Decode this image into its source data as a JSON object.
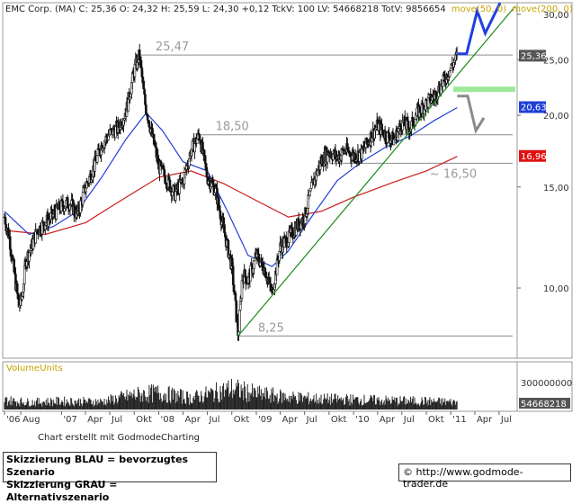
{
  "info_bar": {
    "text": "EMC Corp. (MA) C: 25,36 O: 24,32 H: 25,59 L: 24,30 +0,12 TckV: 100 LV: 54668218 TotV: 9856654",
    "ma_label_50": "move(50, 0)",
    "ma_label_200": "move(200, 0)"
  },
  "volume": {
    "label": "VolumeUnits",
    "tick_label": "300000000",
    "last_value": "54668218"
  },
  "credit": "Chart erstellt mit GodmodeCharting",
  "legend_box": {
    "line1": "Skizzierung BLAU = bevorzugtes Szenario",
    "line2": "Skizzierung GRAU = Alternativszenario"
  },
  "url": {
    "symbol": "©",
    "text": "http://www.godmode-trader.de"
  },
  "colors": {
    "candle": "#111111",
    "ma50": "#1f3fd6",
    "ma200": "#cc1b1b",
    "trendline": "#1a8a1a",
    "level": "#8c8c8c",
    "blue_scenario": "#1f3fe0",
    "grey_scenario": "#8a8a8a",
    "target_zone": "#9ee89a",
    "price_box_dark": "#555555",
    "price_box_blue": "#1f3fd6",
    "price_box_red": "#e01010"
  },
  "chart_data": {
    "type": "line",
    "subtype": "candlestick",
    "title": "EMC Corp. (MA)",
    "y_scale": "log",
    "ylim": [
      7.6,
      31.2
    ],
    "x_range": [
      "2006-06-01",
      "2011-08-31"
    ],
    "y_ticks": [
      {
        "value": 10,
        "label": "10,00"
      },
      {
        "value": 15,
        "label": "15,00"
      },
      {
        "value": 20,
        "label": "20,00"
      },
      {
        "value": 25,
        "label": "25,00"
      },
      {
        "value": 30,
        "label": "30,00"
      }
    ],
    "x_ticks": [
      {
        "date": "2006-06-01",
        "label": "'06"
      },
      {
        "date": "2006-08-01",
        "label": "Aug"
      },
      {
        "date": "2007-01-01",
        "label": "'07"
      },
      {
        "date": "2007-04-01",
        "label": "Apr"
      },
      {
        "date": "2007-07-01",
        "label": "Jul"
      },
      {
        "date": "2007-10-01",
        "label": "Okt"
      },
      {
        "date": "2008-01-01",
        "label": "'08"
      },
      {
        "date": "2008-04-01",
        "label": "Apr"
      },
      {
        "date": "2008-07-01",
        "label": "Jul"
      },
      {
        "date": "2008-10-01",
        "label": "Okt"
      },
      {
        "date": "2009-01-01",
        "label": "'09"
      },
      {
        "date": "2009-04-01",
        "label": "Apr"
      },
      {
        "date": "2009-07-01",
        "label": "Jul"
      },
      {
        "date": "2009-10-01",
        "label": "Okt"
      },
      {
        "date": "2010-01-01",
        "label": "'10"
      },
      {
        "date": "2010-04-01",
        "label": "Apr"
      },
      {
        "date": "2010-07-01",
        "label": "Jul"
      },
      {
        "date": "2010-10-01",
        "label": "Okt"
      },
      {
        "date": "2011-01-01",
        "label": "'11"
      },
      {
        "date": "2011-04-01",
        "label": "Apr"
      },
      {
        "date": "2011-07-01",
        "label": "Jul"
      }
    ],
    "price_path": [
      [
        "2006-06-01",
        13.3
      ],
      [
        "2006-06-20",
        12.2
      ],
      [
        "2006-07-05",
        10.8
      ],
      [
        "2006-07-25",
        9.3
      ],
      [
        "2006-08-05",
        9.6
      ],
      [
        "2006-08-20",
        11.2
      ],
      [
        "2006-09-10",
        11.8
      ],
      [
        "2006-10-01",
        12.6
      ],
      [
        "2006-11-01",
        13.0
      ],
      [
        "2006-12-01",
        13.4
      ],
      [
        "2007-01-01",
        13.9
      ],
      [
        "2007-02-01",
        14.1
      ],
      [
        "2007-03-01",
        13.4
      ],
      [
        "2007-04-01",
        15.0
      ],
      [
        "2007-05-01",
        16.2
      ],
      [
        "2007-06-01",
        17.8
      ],
      [
        "2007-07-01",
        18.6
      ],
      [
        "2007-08-01",
        19.0
      ],
      [
        "2007-09-01",
        20.4
      ],
      [
        "2007-10-01",
        24.0
      ],
      [
        "2007-10-20",
        25.47
      ],
      [
        "2007-11-10",
        21.0
      ],
      [
        "2007-12-01",
        19.0
      ],
      [
        "2008-01-01",
        16.3
      ],
      [
        "2008-02-01",
        15.4
      ],
      [
        "2008-03-01",
        14.6
      ],
      [
        "2008-04-01",
        15.4
      ],
      [
        "2008-05-01",
        17.4
      ],
      [
        "2008-06-01",
        18.5
      ],
      [
        "2008-07-01",
        15.6
      ],
      [
        "2008-08-01",
        14.8
      ],
      [
        "2008-09-01",
        12.6
      ],
      [
        "2008-10-01",
        10.9
      ],
      [
        "2008-10-25",
        8.25
      ],
      [
        "2008-11-10",
        10.6
      ],
      [
        "2008-12-01",
        10.3
      ],
      [
        "2009-01-01",
        11.4
      ],
      [
        "2009-02-01",
        10.8
      ],
      [
        "2009-03-01",
        9.8
      ],
      [
        "2009-04-01",
        11.8
      ],
      [
        "2009-05-01",
        12.2
      ],
      [
        "2009-06-01",
        12.8
      ],
      [
        "2009-07-01",
        13.3
      ],
      [
        "2009-08-01",
        15.2
      ],
      [
        "2009-09-01",
        16.6
      ],
      [
        "2009-10-01",
        17.3
      ],
      [
        "2009-11-01",
        16.9
      ],
      [
        "2009-12-01",
        17.4
      ],
      [
        "2010-01-01",
        17.0
      ],
      [
        "2010-02-01",
        17.2
      ],
      [
        "2010-03-01",
        18.2
      ],
      [
        "2010-04-01",
        19.2
      ],
      [
        "2010-05-01",
        18.5
      ],
      [
        "2010-06-01",
        18.1
      ],
      [
        "2010-07-01",
        19.4
      ],
      [
        "2010-08-01",
        19.0
      ],
      [
        "2010-09-01",
        20.3
      ],
      [
        "2010-10-01",
        21.0
      ],
      [
        "2010-11-01",
        21.6
      ],
      [
        "2010-12-01",
        22.8
      ],
      [
        "2011-01-01",
        24.2
      ],
      [
        "2011-01-25",
        25.36
      ]
    ],
    "ma50_path": [
      [
        "2006-06-01",
        13.6
      ],
      [
        "2006-09-01",
        12.4
      ],
      [
        "2006-12-01",
        12.8
      ],
      [
        "2007-03-01",
        13.6
      ],
      [
        "2007-06-01",
        15.6
      ],
      [
        "2007-09-01",
        18.2
      ],
      [
        "2007-11-15",
        20.2
      ],
      [
        "2008-01-15",
        18.8
      ],
      [
        "2008-04-01",
        16.6
      ],
      [
        "2008-07-01",
        16.0
      ],
      [
        "2008-09-15",
        13.6
      ],
      [
        "2008-12-01",
        11.4
      ],
      [
        "2009-03-01",
        10.9
      ],
      [
        "2009-05-01",
        11.6
      ],
      [
        "2009-08-01",
        13.4
      ],
      [
        "2009-11-01",
        15.4
      ],
      [
        "2010-02-01",
        16.6
      ],
      [
        "2010-05-01",
        17.6
      ],
      [
        "2010-08-01",
        18.4
      ],
      [
        "2010-11-01",
        19.6
      ],
      [
        "2011-01-25",
        20.63
      ]
    ],
    "ma200_path": [
      [
        "2006-06-01",
        12.6
      ],
      [
        "2006-11-01",
        12.4
      ],
      [
        "2007-04-01",
        13.0
      ],
      [
        "2007-09-01",
        14.4
      ],
      [
        "2008-01-01",
        15.6
      ],
      [
        "2008-05-01",
        16.0
      ],
      [
        "2008-09-01",
        15.2
      ],
      [
        "2009-01-01",
        14.2
      ],
      [
        "2009-05-01",
        13.3
      ],
      [
        "2009-09-01",
        13.6
      ],
      [
        "2010-01-01",
        14.4
      ],
      [
        "2010-06-01",
        15.3
      ],
      [
        "2010-10-01",
        16.0
      ],
      [
        "2011-01-25",
        16.96
      ]
    ],
    "horizontal_levels": [
      {
        "value": 25.47,
        "label": "25,47",
        "x_start": "2007-10-20"
      },
      {
        "value": 18.5,
        "label": "18,50",
        "x_start": "2008-06-01"
      },
      {
        "value": 16.5,
        "label": "~ 16,50",
        "x_start": "2009-10-01"
      },
      {
        "value": 8.25,
        "label": "8,25",
        "x_start": "2008-10-25"
      }
    ],
    "trendline": {
      "from": [
        "2008-10-25",
        8.25
      ],
      "to": [
        "2011-08-31",
        31.0
      ]
    },
    "target_zone": {
      "value": 22.2,
      "x_start": "2011-01-10",
      "x_end": "2011-08-31"
    },
    "blue_scenario": [
      [
        "2011-01-25",
        25.6
      ],
      [
        "2011-03-01",
        25.6
      ],
      [
        "2011-04-10",
        30.4
      ],
      [
        "2011-05-10",
        27.8
      ],
      [
        "2011-07-05",
        31.4
      ]
    ],
    "grey_scenario": [
      [
        "2011-01-25",
        21.6
      ],
      [
        "2011-03-05",
        21.6
      ],
      [
        "2011-04-05",
        18.8
      ],
      [
        "2011-05-05",
        19.8
      ]
    ],
    "price_labels": [
      {
        "value": 25.36,
        "label": "25,36",
        "color": "#555555"
      },
      {
        "value": 20.63,
        "label": "20,63",
        "color": "#1f3fd6"
      },
      {
        "value": 16.96,
        "label": "16,96",
        "color": "#e01010"
      }
    ],
    "volume_path": [
      [
        "2006-06-01",
        90
      ],
      [
        "2006-09-01",
        70
      ],
      [
        "2007-01-01",
        80
      ],
      [
        "2007-06-01",
        75
      ],
      [
        "2007-10-01",
        140
      ],
      [
        "2008-01-01",
        160
      ],
      [
        "2008-05-01",
        110
      ],
      [
        "2008-10-01",
        200
      ],
      [
        "2009-01-01",
        150
      ],
      [
        "2009-05-01",
        120
      ],
      [
        "2009-09-01",
        100
      ],
      [
        "2010-01-01",
        95
      ],
      [
        "2010-06-01",
        85
      ],
      [
        "2010-10-01",
        80
      ],
      [
        "2011-01-25",
        70
      ]
    ],
    "volume_ylim": [
      0,
      350
    ]
  }
}
